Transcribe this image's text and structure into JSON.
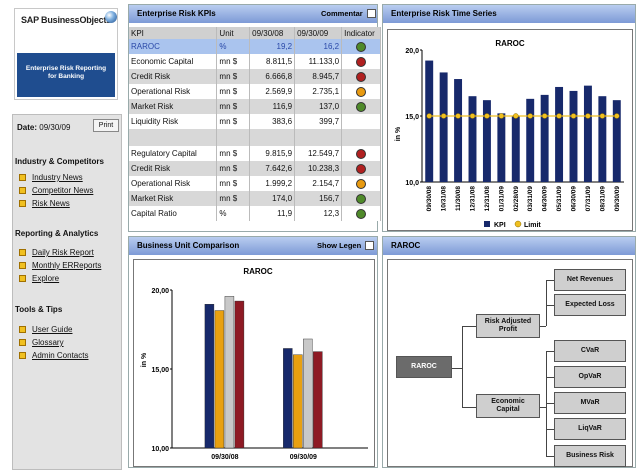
{
  "branding": {
    "logo_text": "SAP BusinessObjects",
    "subtitle_line1": "Enterprise Risk Reporting",
    "subtitle_line2": "for Banking"
  },
  "sidebar": {
    "date_label": "Date:",
    "date_value": "09/30/09",
    "print_label": "Print",
    "sections": [
      {
        "title": "Industry & Competitors",
        "items": [
          "Industry News",
          "Competitor News",
          "Risk News"
        ]
      },
      {
        "title": "Reporting & Analytics",
        "items": [
          "Daily Risk Report",
          "Monthly ERReports",
          "Explore"
        ]
      },
      {
        "title": "Tools & Tips",
        "items": [
          "User Guide",
          "Glossary",
          "Admin Contacts"
        ]
      }
    ]
  },
  "kpi_panel": {
    "title": "Enterprise Risk KPIs",
    "commentary_label": "Commentar",
    "columns": [
      "KPI",
      "Unit",
      "09/30/08",
      "09/30/09",
      "Indicator"
    ],
    "rows": [
      {
        "kpi": "RAROC",
        "unit": "%",
        "v1": "19,2",
        "v2": "16,2",
        "indicator": "#4f8a2a"
      },
      {
        "kpi": "Economic Capital",
        "unit": "mn $",
        "v1": "8.811,5",
        "v2": "11.133,0",
        "indicator": "#b02020"
      },
      {
        "kpi": "Credit Risk",
        "unit": "mn $",
        "v1": "6.666,8",
        "v2": "8.945,7",
        "indicator": "#b02020"
      },
      {
        "kpi": "Operational Risk",
        "unit": "mn $",
        "v1": "2.569,9",
        "v2": "2.735,1",
        "indicator": "#e89a10"
      },
      {
        "kpi": "Market Risk",
        "unit": "mn $",
        "v1": "116,9",
        "v2": "137,0",
        "indicator": "#4f8a2a"
      },
      {
        "kpi": "Liquidity Risk",
        "unit": "mn $",
        "v1": "383,6",
        "v2": "399,7",
        "indicator": ""
      },
      {
        "kpi": "",
        "unit": "",
        "v1": "",
        "v2": "",
        "indicator": ""
      },
      {
        "kpi": "Regulatory Capital",
        "unit": "mn $",
        "v1": "9.815,9",
        "v2": "12.549,7",
        "indicator": "#b02020"
      },
      {
        "kpi": "Credit Risk",
        "unit": "mn $",
        "v1": "7.642,6",
        "v2": "10.238,3",
        "indicator": "#b02020"
      },
      {
        "kpi": "Operational Risk",
        "unit": "mn $",
        "v1": "1.999,2",
        "v2": "2.154,7",
        "indicator": "#e89a10"
      },
      {
        "kpi": "Market Risk",
        "unit": "mn $",
        "v1": "174,0",
        "v2": "156,7",
        "indicator": "#4f8a2a"
      },
      {
        "kpi": "Capital Ratio",
        "unit": "%",
        "v1": "11,9",
        "v2": "12,3",
        "indicator": "#4f8a2a"
      }
    ]
  },
  "timeseries_panel": {
    "title": "Enterprise Risk Time Series"
  },
  "bu_panel": {
    "title": "Business Unit Comparison",
    "show_legend_label": "Show Legen"
  },
  "raroc_panel": {
    "title": "RAROC",
    "tree": {
      "root": "RAROC",
      "mid1_line1": "Risk Adjusted",
      "mid1_line2": "Profit",
      "mid2_line1": "Economic",
      "mid2_line2": "Capital",
      "leaves": [
        "Net Revenues",
        "Expected Loss",
        "CVaR",
        "OpVaR",
        "MVaR",
        "LiqVaR",
        "Business Risk"
      ]
    }
  },
  "chart_data": [
    {
      "type": "bar",
      "title": "RAROC",
      "ylabel": "in %",
      "ylim": [
        10,
        20
      ],
      "yticks": [
        "20,0",
        "15,0",
        "10,0"
      ],
      "categories": [
        "09/30/08",
        "10/31/08",
        "11/30/08",
        "12/31/08",
        "12/31/08",
        "01/31/09",
        "02/28/09",
        "03/31/09",
        "04/30/09",
        "05/31/09",
        "06/30/09",
        "07/31/09",
        "08/31/09",
        "09/30/09"
      ],
      "series": [
        {
          "name": "KPI",
          "values": [
            19.2,
            18.3,
            17.8,
            16.5,
            16.2,
            15.2,
            15.0,
            16.3,
            16.6,
            17.2,
            16.9,
            17.3,
            16.5,
            16.2
          ]
        },
        {
          "name": "Limit",
          "values": [
            15,
            15,
            15,
            15,
            15,
            15,
            15,
            15,
            15,
            15,
            15,
            15,
            15,
            15
          ]
        }
      ],
      "colors": {
        "KPI": "#17296b",
        "Limit": "#f0c020"
      }
    },
    {
      "type": "bar",
      "title": "RAROC",
      "ylabel": "in %",
      "ylim": [
        10,
        20
      ],
      "yticks": [
        "20,00",
        "15,00",
        "10,00"
      ],
      "categories": [
        "09/30/08",
        "09/30/09"
      ],
      "series": [
        {
          "values": [
            19.1,
            16.3
          ]
        },
        {
          "values": [
            18.7,
            15.9
          ]
        },
        {
          "values": [
            19.6,
            16.9
          ]
        },
        {
          "values": [
            19.3,
            16.1
          ]
        }
      ],
      "colors": [
        "#17296b",
        "#e8a010",
        "#c8c8c8",
        "#8e1a24"
      ]
    }
  ]
}
